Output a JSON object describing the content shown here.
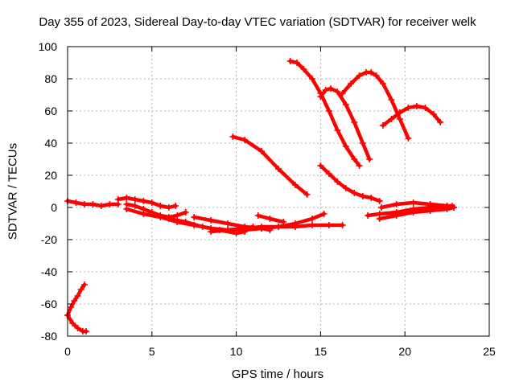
{
  "chart_data": {
    "type": "scatter",
    "title": "Day 355 of 2023, Sidereal Day-to-day VTEC variation (SDTVAR) for receiver welk",
    "xlabel": "GPS time / hours",
    "ylabel": "SDTVAR / TECUs",
    "xlim": [
      0,
      25
    ],
    "ylim": [
      -80,
      100
    ],
    "xticks": [
      0,
      5,
      10,
      15,
      20,
      25
    ],
    "yticks": [
      -80,
      -60,
      -40,
      -20,
      0,
      20,
      40,
      60,
      80,
      100
    ],
    "grid": true,
    "color": "#ff0000",
    "series": [
      {
        "x": [
          0.0,
          0.2,
          0.4,
          0.6,
          0.8,
          1.0
        ],
        "y": [
          -67,
          -62,
          -58,
          -55,
          -51,
          -48
        ]
      },
      {
        "x": [
          0.0,
          0.3,
          0.6,
          0.9,
          1.1
        ],
        "y": [
          -67,
          -72,
          -75,
          -77,
          -77
        ]
      },
      {
        "x": [
          0.0,
          0.5,
          1.0,
          1.5,
          2.0,
          2.5,
          3.0
        ],
        "y": [
          4,
          3,
          2,
          2,
          1,
          2,
          2
        ]
      },
      {
        "x": [
          3.0,
          3.5,
          4.0,
          4.5,
          5.0,
          5.5,
          6.0,
          6.4
        ],
        "y": [
          5,
          6,
          5,
          4,
          3,
          1,
          0,
          1
        ]
      },
      {
        "x": [
          3.5,
          4.0,
          4.5,
          5.0,
          5.5,
          6.0,
          6.5,
          7.0
        ],
        "y": [
          2,
          1,
          -1,
          -3,
          -5,
          -6,
          -5,
          -3
        ]
      },
      {
        "x": [
          3.5,
          4.5,
          5.5,
          6.5,
          7.5,
          8.5,
          9.5,
          10.5,
          11.0
        ],
        "y": [
          -1,
          -4,
          -6,
          -9,
          -11,
          -13,
          -14,
          -13,
          -12
        ]
      },
      {
        "x": [
          6.0,
          7.0,
          8.0,
          9.0,
          10.0,
          10.5
        ],
        "y": [
          -7,
          -9,
          -12,
          -14,
          -16,
          -15
        ]
      },
      {
        "x": [
          7.5,
          8.5,
          9.5,
          10.5,
          11.5,
          12.0
        ],
        "y": [
          -6,
          -8,
          -10,
          -12,
          -13,
          -14
        ]
      },
      {
        "x": [
          8.5,
          9.5,
          10.5,
          11.5,
          12.5,
          13.5,
          14.5,
          15.2
        ],
        "y": [
          -15,
          -14,
          -13,
          -12,
          -12,
          -10,
          -7,
          -4
        ]
      },
      {
        "x": [
          10.5,
          11.5,
          12.5,
          13.5,
          14.5,
          15.5,
          16.3
        ],
        "y": [
          -14,
          -13,
          -12,
          -12,
          -11,
          -11,
          -11
        ]
      },
      {
        "x": [
          11.3,
          12.0,
          12.8
        ],
        "y": [
          -5,
          -7,
          -9
        ]
      },
      {
        "x": [
          9.8,
          10.5,
          11.5,
          12.5,
          13.5,
          14.2
        ],
        "y": [
          44,
          42,
          35,
          24,
          14,
          8
        ]
      },
      {
        "x": [
          13.2,
          13.6,
          14.0,
          14.5,
          15.0,
          15.5,
          16.0,
          16.5,
          17.0,
          17.3
        ],
        "y": [
          91,
          90,
          86,
          80,
          71,
          60,
          48,
          38,
          30,
          26
        ]
      },
      {
        "x": [
          15.0,
          15.3,
          15.6,
          16.0,
          16.5,
          17.0,
          17.5,
          17.9
        ],
        "y": [
          69,
          73,
          74,
          72,
          64,
          53,
          40,
          30
        ]
      },
      {
        "x": [
          16.3,
          16.8,
          17.3,
          17.7,
          18.0,
          18.3,
          18.7,
          19.2,
          19.7,
          20.2
        ],
        "y": [
          71,
          77,
          82,
          84,
          84,
          82,
          77,
          67,
          55,
          43
        ]
      },
      {
        "x": [
          18.7,
          19.2,
          19.7,
          20.2,
          20.7,
          21.2,
          21.7,
          22.1
        ],
        "y": [
          51,
          55,
          59,
          62,
          63,
          62,
          58,
          53
        ]
      },
      {
        "x": [
          15.0,
          15.5,
          16.0,
          16.5,
          17.0,
          17.5,
          18.0,
          18.5
        ],
        "y": [
          26,
          21,
          16,
          12,
          9,
          7,
          6,
          4
        ]
      },
      {
        "x": [
          17.8,
          18.5,
          19.5,
          20.5,
          21.5,
          22.5,
          22.9
        ],
        "y": [
          -5,
          -4,
          -3,
          -1,
          0,
          1,
          0
        ]
      },
      {
        "x": [
          18.5,
          19.5,
          20.5,
          21.5,
          22.5,
          22.9
        ],
        "y": [
          -7,
          -5,
          -3,
          -2,
          -1,
          0
        ]
      },
      {
        "x": [
          18.6,
          19.5,
          20.5,
          21.5,
          22.5,
          22.8
        ],
        "y": [
          0,
          2,
          3,
          2,
          1,
          1
        ]
      }
    ]
  }
}
